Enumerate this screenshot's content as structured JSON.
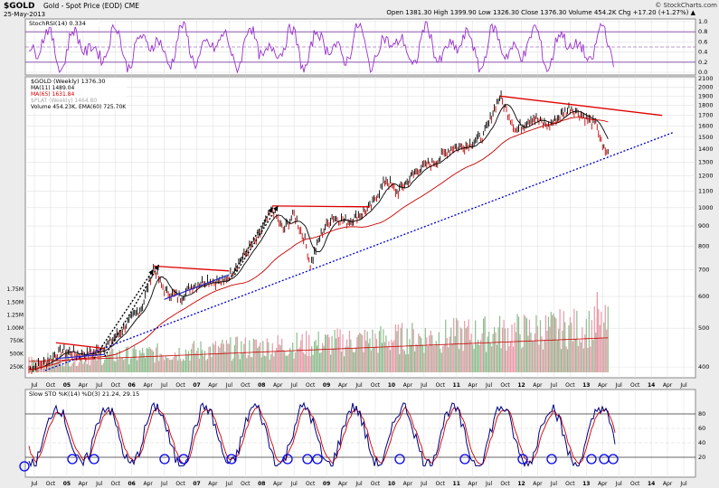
{
  "header": {
    "symbol": "$GOLD",
    "description": "Gold - Spot Price (EOD)  CME",
    "date": "25-May-2013",
    "quote": "Open 1381.30  High 1399.90  Low 1326.30  Close 1376.30  Volume 454.2K  Chg +17.20 (+1.27%) ▲",
    "copyright": "© StockCharts.com"
  },
  "rsi_panel": {
    "label": "StochRSI(14) 0.334",
    "ticks": [
      "1.0",
      "0.8",
      "0.6",
      "0.4",
      "0.2",
      "0.0"
    ],
    "color": "#9932cc"
  },
  "legend": {
    "gold": "$GOLD (Weekly) 1376.30",
    "ma11": "MA(11) 1489.04",
    "ma65": "MA(65) 1631.84",
    "plat": "$PLAT (Weekly) 1464.80",
    "volume": "Volume 454.23K, EMA(60) 725.70K"
  },
  "price_axis": {
    "right_ticks": [
      {
        "label": "2100",
        "v": 2100
      },
      {
        "label": "2000",
        "v": 2000
      },
      {
        "label": "1900",
        "v": 1900
      },
      {
        "label": "1800",
        "v": 1800
      },
      {
        "label": "1700",
        "v": 1700
      },
      {
        "label": "1600",
        "v": 1600
      },
      {
        "label": "1500",
        "v": 1500
      },
      {
        "label": "1400",
        "v": 1400
      },
      {
        "label": "1300",
        "v": 1300
      },
      {
        "label": "1200",
        "v": 1200
      },
      {
        "label": "1100",
        "v": 1100
      },
      {
        "label": "1000",
        "v": 1000
      },
      {
        "label": "900",
        "v": 900
      },
      {
        "label": "800",
        "v": 800
      },
      {
        "label": "700",
        "v": 700
      },
      {
        "label": "600",
        "v": 600
      },
      {
        "label": "500",
        "v": 500
      },
      {
        "label": "400",
        "v": 400
      }
    ],
    "volume_ticks": [
      "1.75M",
      "1.50M",
      "1.25M",
      "1.00M",
      "750K",
      "500K",
      "250K"
    ]
  },
  "sto_panel": {
    "label": "Slow STO %K(14) %D(3) 21.24, 29.15",
    "ticks": [
      "80",
      "60",
      "40",
      "20"
    ]
  },
  "x_axis": {
    "labels": [
      "Jul",
      "Oct",
      "05",
      "Apr",
      "Jul",
      "Oct",
      "06",
      "Apr",
      "Jul",
      "Oct",
      "07",
      "Apr",
      "Jul",
      "Oct",
      "08",
      "Apr",
      "Jul",
      "Oct",
      "09",
      "Apr",
      "Jul",
      "Oct",
      "10",
      "Apr",
      "Jul",
      "Oct",
      "11",
      "Apr",
      "Jul",
      "Oct",
      "12",
      "Apr",
      "Jul",
      "Oct",
      "13",
      "Apr",
      "Jul",
      "Oct",
      "14",
      "Apr",
      "Jul"
    ]
  },
  "chart_data": {
    "type": "line",
    "title": "$GOLD (Weekly)",
    "y_scale": "log",
    "ylim": [
      380,
      2100
    ],
    "price_series": [
      {
        "date": "2004-06",
        "close": 395
      },
      {
        "date": "2004-09",
        "close": 410
      },
      {
        "date": "2004-12",
        "close": 440
      },
      {
        "date": "2005-03",
        "close": 430
      },
      {
        "date": "2005-06",
        "close": 435
      },
      {
        "date": "2005-09",
        "close": 460
      },
      {
        "date": "2005-12",
        "close": 510
      },
      {
        "date": "2006-03",
        "close": 570
      },
      {
        "date": "2006-05",
        "close": 710
      },
      {
        "date": "2006-07",
        "close": 620
      },
      {
        "date": "2006-10",
        "close": 595
      },
      {
        "date": "2006-12",
        "close": 635
      },
      {
        "date": "2007-03",
        "close": 660
      },
      {
        "date": "2007-06",
        "close": 650
      },
      {
        "date": "2007-09",
        "close": 740
      },
      {
        "date": "2007-12",
        "close": 830
      },
      {
        "date": "2008-03",
        "close": 990
      },
      {
        "date": "2008-05",
        "close": 880
      },
      {
        "date": "2008-07",
        "close": 960
      },
      {
        "date": "2008-09",
        "close": 830
      },
      {
        "date": "2008-10",
        "close": 720
      },
      {
        "date": "2008-12",
        "close": 860
      },
      {
        "date": "2009-02",
        "close": 950
      },
      {
        "date": "2009-05",
        "close": 920
      },
      {
        "date": "2009-09",
        "close": 1000
      },
      {
        "date": "2009-12",
        "close": 1180
      },
      {
        "date": "2010-02",
        "close": 1090
      },
      {
        "date": "2010-06",
        "close": 1250
      },
      {
        "date": "2010-09",
        "close": 1300
      },
      {
        "date": "2010-12",
        "close": 1410
      },
      {
        "date": "2011-03",
        "close": 1430
      },
      {
        "date": "2011-06",
        "close": 1510
      },
      {
        "date": "2011-09",
        "close": 1900
      },
      {
        "date": "2011-12",
        "close": 1560
      },
      {
        "date": "2012-03",
        "close": 1680
      },
      {
        "date": "2012-06",
        "close": 1600
      },
      {
        "date": "2012-10",
        "close": 1780
      },
      {
        "date": "2013-01",
        "close": 1670
      },
      {
        "date": "2013-03",
        "close": 1600
      },
      {
        "date": "2013-04",
        "close": 1400
      },
      {
        "date": "2013-05",
        "close": 1376
      }
    ],
    "trendlines": [
      {
        "name": "support",
        "color": "#0000cc",
        "style": "dotted",
        "from": {
          "date": "2004-09",
          "value": 392
        },
        "to": {
          "date": "2014-05",
          "value": 1540
        }
      },
      {
        "name": "resistance",
        "color": "#e00000",
        "from": {
          "date": "2011-09",
          "value": 1900
        },
        "to": {
          "date": "2014-03",
          "value": 1700
        }
      }
    ],
    "annotations": [
      "red flag lines 2005, 2006-07, 2008-09",
      "black dotted arrows 2005-2008",
      "blue circles on Slow STO at oversold lows"
    ]
  }
}
